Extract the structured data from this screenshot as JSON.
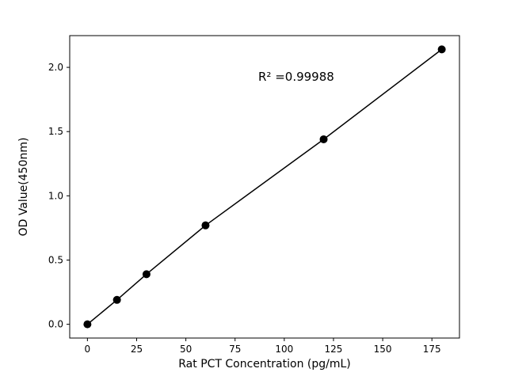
{
  "chart_data": {
    "type": "scatter",
    "title": "",
    "xlabel": "Rat PCT Concentration (pg/mL)",
    "ylabel": "OD Value(450nm)",
    "annotation": "R² =0.99988",
    "x": [
      0,
      15,
      30,
      60,
      120,
      180
    ],
    "y": [
      0.0,
      0.19,
      0.39,
      0.77,
      1.44,
      2.14
    ],
    "xlim": [
      -9,
      189
    ],
    "ylim": [
      -0.107,
      2.247
    ],
    "xticks": [
      0,
      25,
      50,
      75,
      100,
      125,
      150,
      175
    ],
    "xtick_labels": [
      "0",
      "25",
      "50",
      "75",
      "100",
      "125",
      "150",
      "175"
    ],
    "yticks": [
      0.0,
      0.5,
      1.0,
      1.5,
      2.0
    ],
    "ytick_labels": [
      "0.0",
      "0.5",
      "1.0",
      "1.5",
      "2.0"
    ],
    "grid": false,
    "legend": null,
    "line_color": "#000000",
    "marker_color": "#000000",
    "marker_radius": 5
  }
}
